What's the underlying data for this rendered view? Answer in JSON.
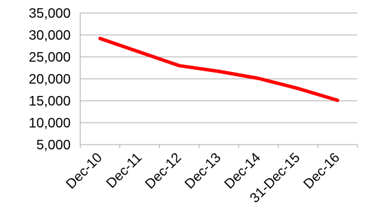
{
  "chart_data": {
    "type": "line",
    "title": "",
    "xlabel": "",
    "ylabel": "",
    "categories": [
      "Dec-10",
      "Dec-11",
      "Dec-12",
      "Dec-13",
      "Dec-14",
      "31-Dec-15",
      "Dec-16"
    ],
    "series": [
      {
        "values": [
          29200,
          26100,
          23000,
          21700,
          20100,
          17800,
          15100
        ],
        "color": "#ff0000"
      }
    ],
    "ylim": [
      5000,
      35000
    ],
    "y_ticks": [
      "5,000",
      "10,000",
      "15,000",
      "20,000",
      "25,000",
      "30,000",
      "35,000"
    ],
    "grid": true,
    "legend": "none"
  }
}
